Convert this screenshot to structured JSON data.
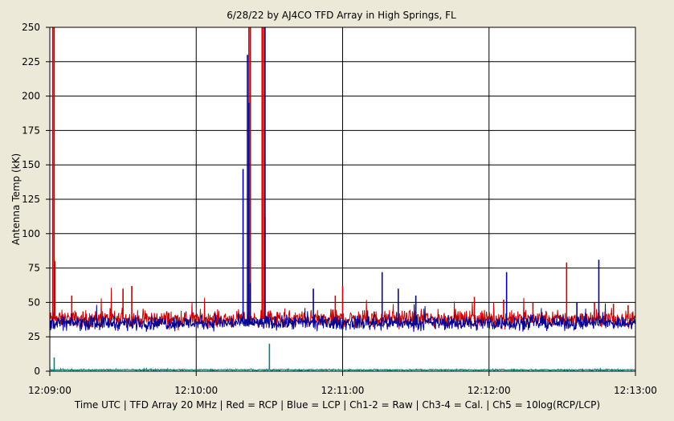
{
  "chart_data": {
    "type": "line",
    "title": "6/28/22  by  AJ4CO TFD Array  in  High Springs, FL",
    "ylabel": "Antenna Temp (kK)",
    "xlabel": "Time UTC | TFD Array 20 MHz | Red = RCP | Blue = LCP | Ch1-2 = Raw | Ch3-4 = Cal. | Ch5 = 10log(RCP/LCP)",
    "ylim": [
      0,
      250
    ],
    "yticks": [
      0,
      25,
      50,
      75,
      100,
      125,
      150,
      175,
      200,
      225,
      250
    ],
    "xlim": [
      "12:09:00",
      "12:13:00"
    ],
    "xticks": [
      "12:09:00",
      "12:10:00",
      "12:11:00",
      "12:12:00",
      "12:13:00"
    ],
    "grid": true,
    "background": "#ffffff",
    "series": [
      {
        "color": "#cc0000",
        "baseline": 38,
        "noise": 6,
        "spikes": [
          [
            0.02,
            250
          ],
          [
            0.03,
            250
          ],
          [
            0.035,
            80
          ],
          [
            0.15,
            55
          ],
          [
            0.5,
            60
          ],
          [
            0.56,
            62
          ],
          [
            1.36,
            250
          ],
          [
            1.37,
            250
          ],
          [
            1.45,
            250
          ],
          [
            1.46,
            250
          ],
          [
            1.47,
            112
          ],
          [
            1.95,
            55
          ],
          [
            2.0,
            62
          ],
          [
            2.9,
            54
          ],
          [
            3.1,
            52
          ],
          [
            3.3,
            50
          ],
          [
            3.53,
            79
          ],
          [
            3.72,
            50
          ],
          [
            3.85,
            49
          ],
          [
            3.95,
            48
          ]
        ]
      },
      {
        "color": "#000099",
        "baseline": 35,
        "noise": 5,
        "spikes": [
          [
            1.32,
            147
          ],
          [
            1.35,
            230
          ],
          [
            1.36,
            195
          ],
          [
            1.37,
            64
          ],
          [
            1.47,
            250
          ],
          [
            1.8,
            60
          ],
          [
            2.27,
            72
          ],
          [
            2.38,
            60
          ],
          [
            2.5,
            55
          ],
          [
            3.12,
            72
          ],
          [
            3.6,
            50
          ],
          [
            3.75,
            81
          ]
        ]
      },
      {
        "color": "#008080",
        "baseline": 1,
        "noise": 0.5,
        "spikes": [
          [
            0.03,
            10
          ],
          [
            1.5,
            20
          ]
        ]
      }
    ]
  }
}
